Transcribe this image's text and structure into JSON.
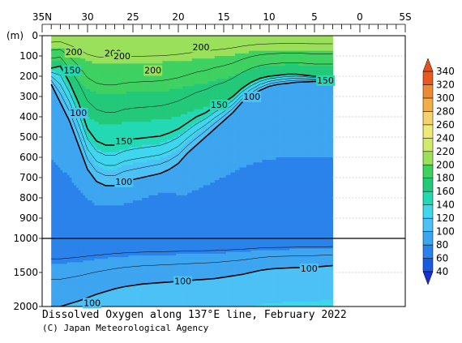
{
  "chart_data": {
    "type": "heatmap",
    "title": "Dissolved Oxygen along 137°E line, February 2022",
    "credit": "(C) Japan Meteorological Agency",
    "ylabel": "(m)",
    "x_ticks": [
      "35N",
      "30",
      "25",
      "20",
      "15",
      "10",
      "5",
      "0",
      "5S"
    ],
    "y_ticks_upper": [
      "0",
      "100",
      "200",
      "300",
      "400",
      "500",
      "600",
      "700",
      "800",
      "900",
      "1000"
    ],
    "y_ticks_lower": [
      "1500",
      "2000"
    ],
    "xlim_lat": [
      35,
      -5
    ],
    "ylim_depth": [
      0,
      2000
    ],
    "data_extent_lat": [
      34,
      3
    ],
    "colorbar": {
      "labels": [
        "40",
        "60",
        "80",
        "100",
        "120",
        "140",
        "160",
        "180",
        "200",
        "220",
        "240",
        "260",
        "280",
        "300",
        "320",
        "340"
      ],
      "values": [
        40,
        60,
        80,
        100,
        120,
        140,
        160,
        180,
        200,
        220,
        240,
        260,
        280,
        300,
        320,
        340
      ],
      "colors": [
        "#1a5adc",
        "#2a83ea",
        "#3ea5f0",
        "#4cc1f5",
        "#3fd6ee",
        "#22d9b4",
        "#22c979",
        "#3fd161",
        "#9be05a",
        "#d2ea6a",
        "#f0e878",
        "#f5d270",
        "#f2ae48",
        "#ee8a33",
        "#e85a20"
      ],
      "under_color": "#1a2ed6",
      "over_color": "#e8501a"
    },
    "contour_labels": [
      {
        "text": "200",
        "lat": 31.5,
        "depth": 80
      },
      {
        "text": "200",
        "lat": 27.2,
        "depth": 85
      },
      {
        "text": "200",
        "lat": 26.2,
        "depth": 100
      },
      {
        "text": "200",
        "lat": 22.8,
        "depth": 170
      },
      {
        "text": "200",
        "lat": 17.5,
        "depth": 55
      },
      {
        "text": "150",
        "lat": 31.7,
        "depth": 170
      },
      {
        "text": "150",
        "lat": 3.8,
        "depth": 220
      },
      {
        "text": "150",
        "lat": 15.5,
        "depth": 340
      },
      {
        "text": "150",
        "lat": 26.0,
        "depth": 520
      },
      {
        "text": "100",
        "lat": 31.0,
        "depth": 380
      },
      {
        "text": "100",
        "lat": 11.9,
        "depth": 300
      },
      {
        "text": "100",
        "lat": 26.0,
        "depth": 720
      },
      {
        "text": "100",
        "lat": 5.6,
        "depth": 1440
      },
      {
        "text": "100",
        "lat": 19.5,
        "depth": 1625
      },
      {
        "text": "100",
        "lat": 29.5,
        "depth": 1945
      }
    ],
    "profile": [
      {
        "lat": 34.0,
        "iso150": 160,
        "iso100": 240,
        "iso60": 1000,
        "iso100b": 2000
      },
      {
        "lat": 33.0,
        "iso150": 150,
        "iso100": 330,
        "iso60": 1000,
        "iso100b": 2000
      },
      {
        "lat": 32.0,
        "iso150": 230,
        "iso100": 420,
        "iso60": 1000,
        "iso100b": 1960
      },
      {
        "lat": 31.0,
        "iso150": 330,
        "iso100": 540,
        "iso60": 990,
        "iso100b": 1920
      },
      {
        "lat": 30.0,
        "iso150": 460,
        "iso100": 660,
        "iso60": 970,
        "iso100b": 1870
      },
      {
        "lat": 29.0,
        "iso150": 520,
        "iso100": 720,
        "iso60": 960,
        "iso100b": 1820
      },
      {
        "lat": 28.0,
        "iso150": 540,
        "iso100": 740,
        "iso60": 950,
        "iso100b": 1780
      },
      {
        "lat": 27.0,
        "iso150": 540,
        "iso100": 740,
        "iso60": 950,
        "iso100b": 1740
      },
      {
        "lat": 26.0,
        "iso150": 520,
        "iso100": 720,
        "iso60": 950,
        "iso100b": 1710
      },
      {
        "lat": 25.0,
        "iso150": 510,
        "iso100": 710,
        "iso60": 940,
        "iso100b": 1690
      },
      {
        "lat": 24.0,
        "iso150": 505,
        "iso100": 700,
        "iso60": 920,
        "iso100b": 1670
      },
      {
        "lat": 23.0,
        "iso150": 500,
        "iso100": 690,
        "iso60": 900,
        "iso100b": 1660
      },
      {
        "lat": 22.0,
        "iso150": 495,
        "iso100": 680,
        "iso60": 880,
        "iso100b": 1650
      },
      {
        "lat": 21.0,
        "iso150": 480,
        "iso100": 660,
        "iso60": 900,
        "iso100b": 1640
      },
      {
        "lat": 20.0,
        "iso150": 460,
        "iso100": 630,
        "iso60": 950,
        "iso100b": 1630
      },
      {
        "lat": 19.0,
        "iso150": 430,
        "iso100": 580,
        "iso60": 1000,
        "iso100b": 1620
      },
      {
        "lat": 18.0,
        "iso150": 400,
        "iso100": 540,
        "iso60": 1000,
        "iso100b": 1610
      },
      {
        "lat": 17.0,
        "iso150": 380,
        "iso100": 500,
        "iso60": 1000,
        "iso100b": 1600
      },
      {
        "lat": 16.0,
        "iso150": 350,
        "iso100": 460,
        "iso60": 1000,
        "iso100b": 1590
      },
      {
        "lat": 15.0,
        "iso150": 330,
        "iso100": 420,
        "iso60": 1000,
        "iso100b": 1570
      },
      {
        "lat": 14.0,
        "iso150": 300,
        "iso100": 380,
        "iso60": 1000,
        "iso100b": 1550
      },
      {
        "lat": 13.0,
        "iso150": 260,
        "iso100": 330,
        "iso60": 1000,
        "iso100b": 1530
      },
      {
        "lat": 12.0,
        "iso150": 230,
        "iso100": 300,
        "iso60": 1000,
        "iso100b": 1500
      },
      {
        "lat": 11.0,
        "iso150": 210,
        "iso100": 270,
        "iso60": 1000,
        "iso100b": 1470
      },
      {
        "lat": 10.0,
        "iso150": 200,
        "iso100": 250,
        "iso60": 1000,
        "iso100b": 1450
      },
      {
        "lat": 9.0,
        "iso150": 195,
        "iso100": 240,
        "iso60": 1000,
        "iso100b": 1440
      },
      {
        "lat": 8.0,
        "iso150": 190,
        "iso100": 235,
        "iso60": 1000,
        "iso100b": 1435
      },
      {
        "lat": 7.0,
        "iso150": 190,
        "iso100": 230,
        "iso60": 1000,
        "iso100b": 1430
      },
      {
        "lat": 6.0,
        "iso150": 195,
        "iso100": 228,
        "iso60": 1000,
        "iso100b": 1425
      },
      {
        "lat": 5.0,
        "iso150": 200,
        "iso100": 226,
        "iso60": 1000,
        "iso100b": 1420
      },
      {
        "lat": 4.0,
        "iso150": 200,
        "iso100": 225,
        "iso60": 1000,
        "iso100b": 1410
      },
      {
        "lat": 3.0,
        "iso150": 200,
        "iso100": 225,
        "iso60": 1000,
        "iso100b": 1400
      }
    ]
  }
}
